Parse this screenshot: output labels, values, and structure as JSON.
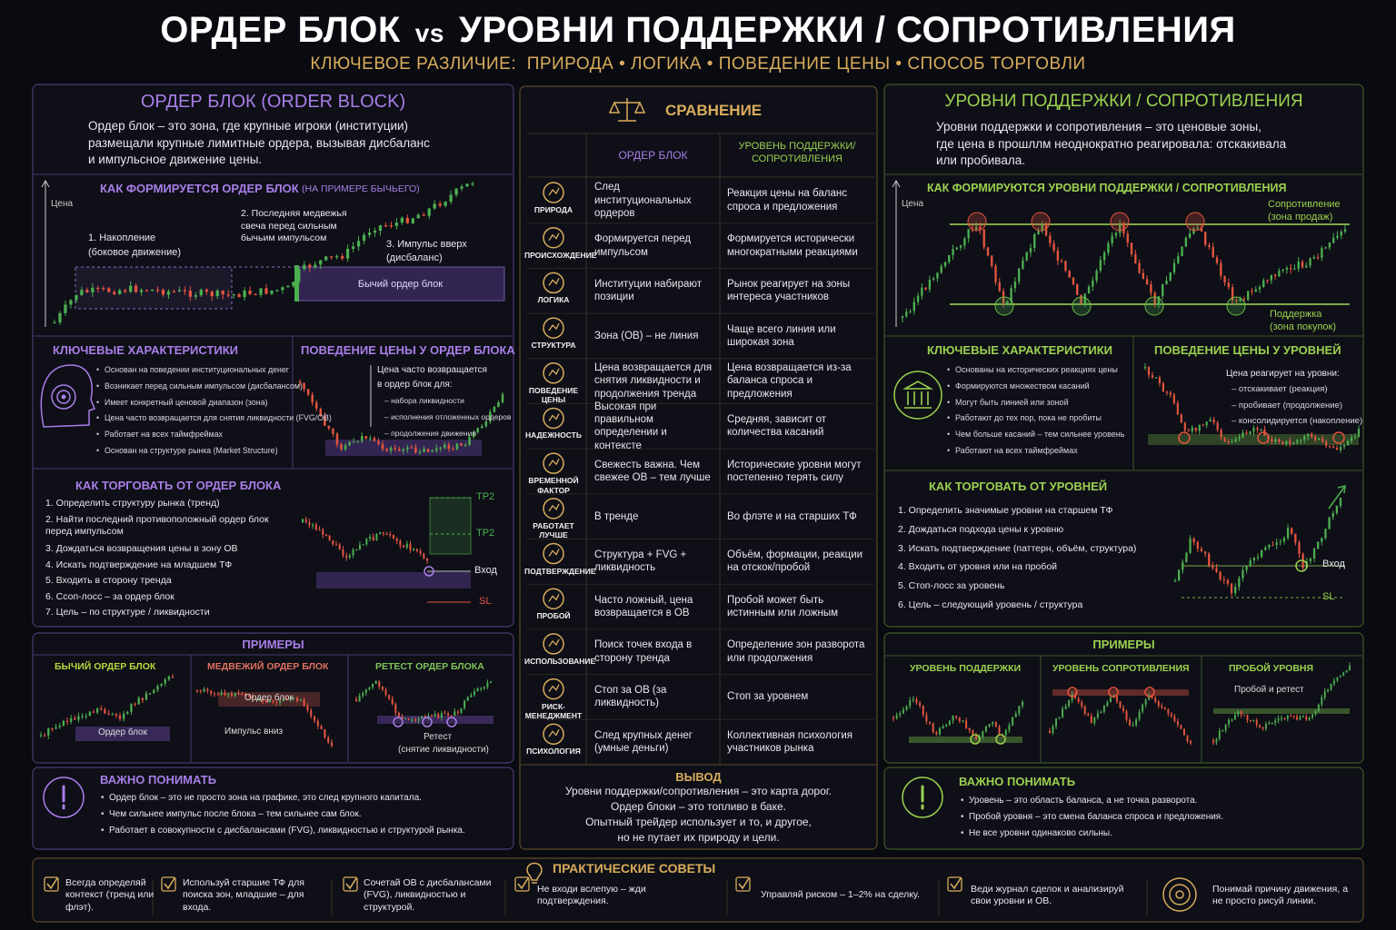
{
  "header": {
    "title_left": "ОРДЕР БЛОК",
    "title_vs": "vs",
    "title_right": "УРОВНИ ПОДДЕРЖКИ / СОПРОТИВЛЕНИЯ",
    "subtitle": "КЛЮЧЕВОЕ РАЗЛИЧИЕ:  ПРИРОДА • ЛОГИКА • ПОВЕДЕНИЕ ЦЕНЫ • СПОСОБ ТОРГОВЛИ"
  },
  "order_block": {
    "title": "ОРДЕР БЛОК (ORDER BLOCK)",
    "description": [
      "Ордер блок – это зона, где крупные игроки (институции)",
      "размещали крупные лимитные ордера, вызывая дисбаланс",
      "и импульсное движение цены."
    ],
    "formation": {
      "title": "КАК ФОРМИРУЕТСЯ ОРДЕР БЛОК",
      "title_note": "(НА ПРИМЕРЕ БЫЧЬЕГО)",
      "axis_label": "Цена",
      "step1": [
        "1. Накопление",
        "(боковое движение)"
      ],
      "step2": [
        "2. Последняя медвежья",
        "свеча перед сильным",
        "бычьим импульсом"
      ],
      "step3": [
        "3. Импульс вверх",
        "(дисбаланс)"
      ],
      "zone": "Бычий ордер блок"
    },
    "characteristics": {
      "title": "КЛЮЧЕВЫЕ ХАРАКТЕРИСТИКИ",
      "items": [
        "Основан на поведении институциональных денег",
        "Возникает перед сильным импульсом (дисбалансом)",
        "Имеет конкретный ценовой диапазон (зона)",
        "Цена часто возвращается для снятия ликвидности (FVG/OB)",
        "Работает на всех таймфреймах",
        "Основан на структуре рынка (Market Structure)"
      ]
    },
    "behavior": {
      "title": "ПОВЕДЕНИЕ ЦЕНЫ У ОРДЕР БЛОКА",
      "lead": [
        "Цена часто возвращается",
        "в ордер блок для:"
      ],
      "items": [
        "– набора ликвидности",
        "– исполнения отложенных ордеров",
        "– продолжения движения"
      ]
    },
    "trading": {
      "title": "КАК ТОРГОВАТЬ ОТ ОРДЕР БЛОКА",
      "steps": [
        "1. Определить структуру рынка (тренд)",
        "2. Найти последний противоположный ордер блок перед импульсом",
        "3. Дождаться возвращения цены в зону OB",
        "4. Искать подтверждение на младшем ТФ",
        "5. Входить в сторону тренда",
        "6. Ссоп-лосс – за ордер блок",
        "7. Цель – по структуре / ликвидности"
      ],
      "tp_upper": "TP2",
      "tp_lower": "TP2",
      "entry": "Вход",
      "sl": "SL"
    },
    "examples": {
      "title": "ПРИМЕРЫ",
      "items": [
        {
          "title": "БЫЧИЙ ОРДЕР БЛОК",
          "labels": [
            "Ордер блок"
          ]
        },
        {
          "title": "МЕДВЕЖИЙ ОРДЕР БЛОК",
          "labels": [
            "Ордер блок",
            "Импульс вниз"
          ]
        },
        {
          "title": "РЕТЕСТ ОРДЕР БЛОКА",
          "labels": [
            "Ретест",
            "(снятие ликвидности)"
          ]
        }
      ]
    },
    "important": {
      "title": "ВАЖНО ПОНИМАТЬ",
      "items": [
        "Ордер блок – это не просто зона на графике, это след крупного капитала.",
        "Чем сильнее импульс после блока – тем сильнее сам блок.",
        "Работает в совокупности с дисбалансами (FVG), ликвидностью и структурой рынка."
      ]
    }
  },
  "comparison": {
    "title": "СРАВНЕНИЕ",
    "col_ob": "ОРДЕР БЛОК",
    "col_sr": "УРОВЕНЬ ПОДДЕРЖКИ/СОПРОТИВЛЕНИЯ",
    "rows": [
      {
        "label": "ПРИРОДА",
        "ob": "След институциональных ордеров",
        "sr": "Реакция цены на баланс спроса и предложения"
      },
      {
        "label": "ПРОИСХОЖДЕНИЕ",
        "ob": "Формируется перед импульсом",
        "sr": "Формируется исторически многократными реакциями"
      },
      {
        "label": "ЛОГИКА",
        "ob": "Институции набирают позиции",
        "sr": "Рынок реагирует на зоны интереса участников"
      },
      {
        "label": "СТРУКТУРА",
        "ob": "Зона (OB) – не линия",
        "sr": "Чаще всего линия или широкая зона"
      },
      {
        "label": "ПОВЕДЕНИЕ ЦЕНЫ",
        "ob": "Цена возвращается для снятия ликвидности и продолжения тренда",
        "sr": "Цена возвращается из-за баланса спроса и предложения"
      },
      {
        "label": "НАДЕЖНОСТЬ",
        "ob": "Высокая при правильном определении и контексте",
        "sr": "Средняя, зависит от количества касаний"
      },
      {
        "label": "ВРЕМЕННОЙ ФАКТОР",
        "ob": "Свежесть важна. Чем свежее OB – тем лучше",
        "sr": "Исторические уровни могут постепенно терять силу"
      },
      {
        "label": "РАБОТАЕТ ЛУЧШЕ",
        "ob": "В тренде",
        "sr": "Во флэте и на старших ТФ"
      },
      {
        "label": "ПОДТВЕРЖДЕНИЕ",
        "ob": "Структура + FVG + ликвидность",
        "sr": "Объём, формации, реакции на отскок/пробой"
      },
      {
        "label": "ПРОБОЙ",
        "ob": "Часто ложный, цена возвращается в OB",
        "sr": "Пробой может быть истинным или ложным"
      },
      {
        "label": "ИСПОЛЬЗОВАНИЕ",
        "ob": "Поиск точек входа в сторону тренда",
        "sr": "Определение зон разворота или продолжения"
      },
      {
        "label": "РИСК-МЕНЕДЖМЕНТ",
        "ob": "Стоп за OB (за ликвидность)",
        "sr": "Стоп за уровнем"
      },
      {
        "label": "ПСИХОЛОГИЯ",
        "ob": "След крупных денег (умные деньги)",
        "sr": "Коллективная психология участников рынка"
      }
    ],
    "conclusion_title": "ВЫВОД",
    "conclusion": [
      "Уровни поддержки/сопротивления – это карта дорог.",
      "Ордер блоки – это топливо в баке.",
      "Опытный трейдер использует и то, и другое,",
      "но не путает их природу и цели."
    ]
  },
  "levels": {
    "title": "УРОВНИ ПОДДЕРЖКИ / СОПРОТИВЛЕНИЯ",
    "description": [
      "Уровни поддержки и сопротивления – это ценовые зоны,",
      "где цена в прошллм неоднократно реагировала: отскакивала",
      "или пробивала."
    ],
    "formation": {
      "title": "КАК ФОРМИРУЮТСЯ УРОВНИ ПОДДЕРЖКИ / СОПРОТИВЛЕНИЯ",
      "axis_label": "Цена",
      "resistance": [
        "Сопротивление",
        "(зона продаж)"
      ],
      "support": [
        "Поддержка",
        "(зона покупок)"
      ]
    },
    "characteristics": {
      "title": "КЛЮЧЕВЫЕ ХАРАКТЕРИСТИКИ",
      "items": [
        "Основаны на исторических реакциях цены",
        "Формируются множеством касаний",
        "Могут быть линией или зоной",
        "Работают до тех пор, пока не пробиты",
        "Чем больше касаний – тем сильнее уровень",
        "Работают на всех таймфреймах"
      ]
    },
    "behavior": {
      "title": "ПОВЕДЕНИЕ ЦЕНЫ У УРОВНЕЙ",
      "lead": [
        "Цена реагирует на уровни:"
      ],
      "items": [
        "– отскакивает (реакция)",
        "– пробивает (продолжение)",
        "– консолидируется (накопление)"
      ]
    },
    "trading": {
      "title": "КАК ТОРГОВАТЬ ОТ УРОВНЕЙ",
      "steps": [
        "1. Определить значимые уровни на старшем ТФ",
        "2. Дождаться подхода цены к уровню",
        "3. Искать подтверждение (паттерн, объём, структура)",
        "4. Входить от уровня или на пробой",
        "5. Стоп-лосс за уровень",
        "6. Цель – следующий уровень / структура"
      ],
      "entry": "Вход",
      "sl": "SL"
    },
    "examples": {
      "title": "ПРИМЕРЫ",
      "items": [
        {
          "title": "УРОВЕНЬ ПОДДЕРЖКИ"
        },
        {
          "title": "УРОВЕНЬ СОПРОТИВЛЕНИЯ"
        },
        {
          "title": "ПРОБОЙ УРОВНЯ",
          "labels": [
            "Пробой и ретест"
          ]
        }
      ]
    },
    "important": {
      "title": "ВАЖНО ПОНИМАТЬ",
      "items": [
        "Уровень – это область баланса, а не точка разворота.",
        "Пробой уровня – это смена баланса спроса и предложения.",
        "Не все уровни одинаково сильны."
      ]
    }
  },
  "tips": {
    "title": "ПРАКТИЧЕСКИЕ СОВЕТЫ",
    "items": [
      "Всегда определяй контекст (тренд или флэт).",
      "Используй старшие ТФ для поиска зон, младшие – для входа.",
      "Сочетай OB с дисбалансами (FVG), ликвидностью и структурой.",
      "Не входи вслепую – жди подтверждения.",
      "Управляй риском – 1–2% на сделку.",
      "Веди журнал сделок и анализируй свои уровни и OB.",
      "Понимай причину движения, а не просто рисуй линии."
    ]
  }
}
